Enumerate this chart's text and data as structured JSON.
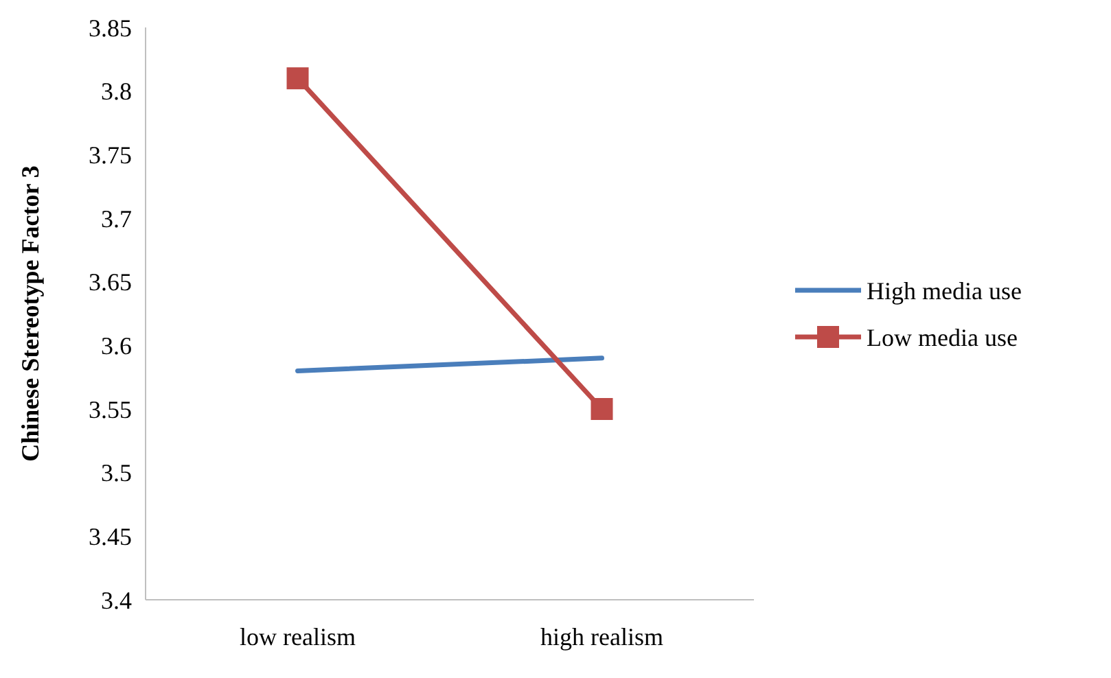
{
  "chart_data": {
    "type": "line",
    "ylabel": "Chinese Stereotype Factor 3",
    "categories": [
      "low realism",
      "high realism"
    ],
    "series": [
      {
        "name": "High media use",
        "color": "#4a7ebb",
        "values": [
          3.58,
          3.59
        ],
        "marker": "none"
      },
      {
        "name": "Low media use",
        "color": "#be4b48",
        "values": [
          3.81,
          3.55
        ],
        "marker": "square"
      }
    ],
    "ylim": [
      3.4,
      3.85
    ],
    "yticks": [
      3.4,
      3.45,
      3.5,
      3.55,
      3.6,
      3.65,
      3.7,
      3.75,
      3.8,
      3.85
    ],
    "grid": false,
    "legend": "right",
    "line_style": "solid"
  }
}
